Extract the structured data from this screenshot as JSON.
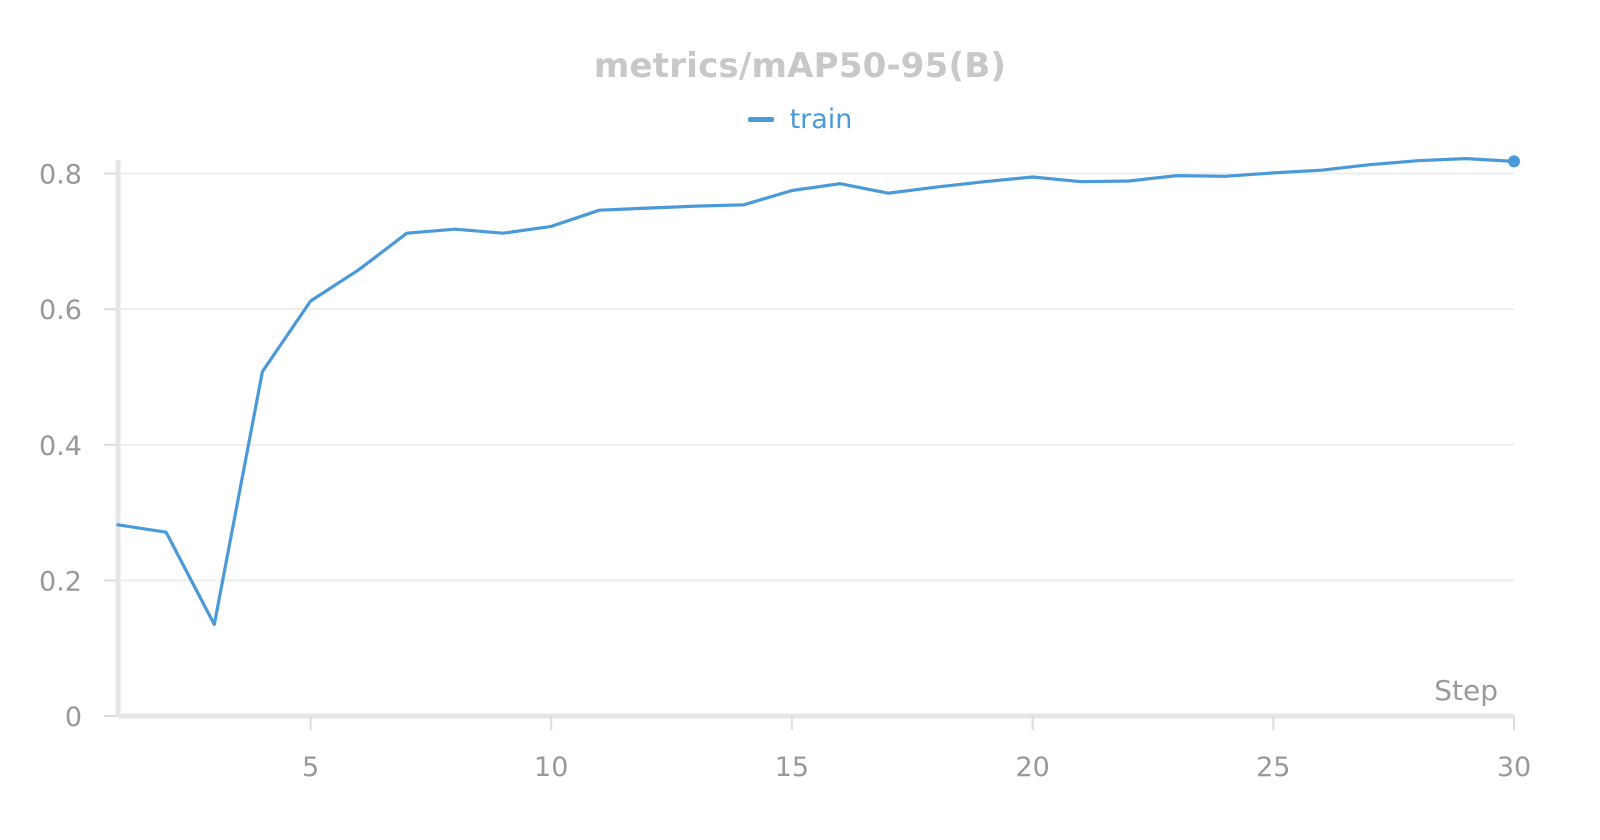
{
  "chart_data": {
    "type": "line",
    "title": "metrics/mAP50-95(B)",
    "xlabel": "Step",
    "ylabel": "",
    "xlim": [
      1,
      30
    ],
    "ylim": [
      0,
      0.82
    ],
    "xticks": [
      5,
      10,
      15,
      20,
      25,
      30
    ],
    "yticks": [
      0,
      0.2,
      0.4,
      0.6,
      0.8
    ],
    "grid": "horizontal",
    "legend": "top-center",
    "series": [
      {
        "name": "train",
        "color": "#4a9ad9",
        "x": [
          1,
          2,
          3,
          4,
          5,
          6,
          7,
          8,
          9,
          10,
          11,
          12,
          13,
          14,
          15,
          16,
          17,
          18,
          19,
          20,
          21,
          22,
          23,
          24,
          25,
          26,
          27,
          28,
          29,
          30
        ],
        "y": [
          0.282,
          0.271,
          0.135,
          0.508,
          0.612,
          0.658,
          0.712,
          0.718,
          0.712,
          0.722,
          0.746,
          0.749,
          0.752,
          0.754,
          0.775,
          0.785,
          0.771,
          0.78,
          0.788,
          0.795,
          0.788,
          0.789,
          0.797,
          0.796,
          0.801,
          0.805,
          0.813,
          0.819,
          0.822,
          0.818
        ]
      }
    ]
  }
}
